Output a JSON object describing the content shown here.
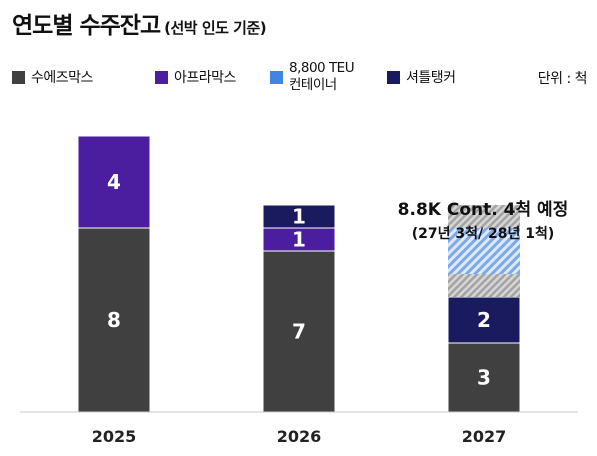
{
  "title": {
    "main": "연도별 수주잔고",
    "sub": "(선박 인도 기준)"
  },
  "legend": [
    {
      "name": "수에즈막스",
      "color": "#404040"
    },
    {
      "name": "아프라막스",
      "color": "#4b1ea0"
    },
    {
      "name": "8,800 TEU",
      "name2": "컨테이너",
      "color": "#3f86e3"
    },
    {
      "name": "셔틀탱커",
      "color": "#1a1a5e"
    }
  ],
  "unit_label": "단위 : 척",
  "chart_data": {
    "type": "bar",
    "stacked": true,
    "categories": [
      "2025",
      "2026",
      "2027"
    ],
    "series": [
      {
        "name": "수에즈막스",
        "values": [
          8,
          7,
          3
        ],
        "color": "#404040"
      },
      {
        "name": "아프라막스",
        "values": [
          4,
          1,
          0
        ],
        "color": "#4b1ea0"
      },
      {
        "name": "셔틀탱커",
        "values": [
          0,
          1,
          2
        ],
        "color": "#1a1a5e"
      },
      {
        "name": "8,800 TEU 컨테이너",
        "values": [
          0,
          0,
          4
        ],
        "color": "#3f86e3"
      }
    ],
    "annotation": {
      "line1": "8.8K Cont. 4척 예정",
      "line2": "(27년 3척/ 28년 1척)"
    },
    "ylim": [
      0,
      12
    ],
    "grid": false
  }
}
